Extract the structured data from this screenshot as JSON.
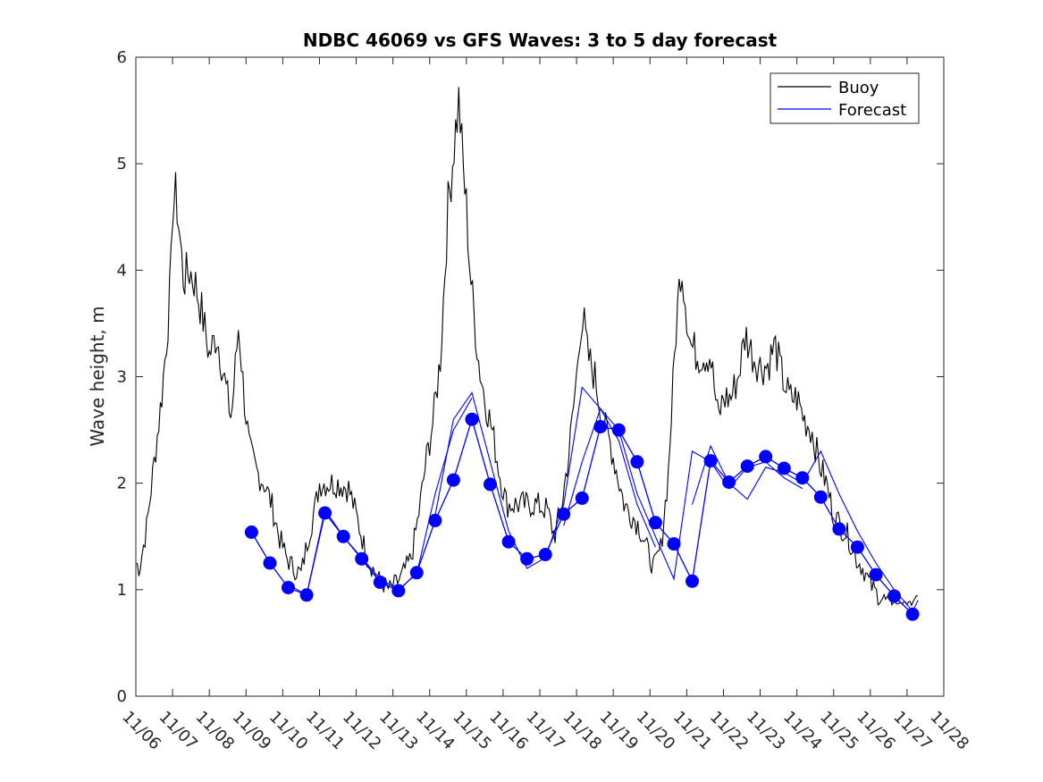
{
  "chart_data": {
    "type": "line",
    "title": "NDBC 46069 vs GFS Waves: 3 to 5 day forecast",
    "xlabel": "",
    "ylabel": "Wave height, m",
    "xlim": [
      0,
      22
    ],
    "ylim": [
      0,
      6
    ],
    "yticks": [
      "0",
      "1",
      "2",
      "3",
      "4",
      "5",
      "6"
    ],
    "xticks": [
      "11/06",
      "11/07",
      "11/08",
      "11/09",
      "11/10",
      "11/11",
      "11/12",
      "11/13",
      "11/14",
      "11/15",
      "11/16",
      "11/17",
      "11/18",
      "11/19",
      "11/20",
      "11/21",
      "11/22",
      "11/23",
      "11/24",
      "11/25",
      "11/26",
      "11/27",
      "11/28"
    ],
    "legend": {
      "position": "top-right",
      "entries": [
        {
          "label": "Buoy",
          "color": "#000000"
        },
        {
          "label": "Forecast",
          "color": "#0000ff"
        }
      ]
    },
    "colors": {
      "buoy": "#000000",
      "forecast": "#0000ff"
    },
    "buoy_anchors": {
      "x": [
        0,
        0.1,
        0.3,
        0.5,
        0.7,
        0.85,
        0.95,
        1.0,
        1.1,
        1.2,
        1.3,
        1.45,
        1.6,
        1.8,
        2.0,
        2.2,
        2.4,
        2.6,
        2.8,
        2.95,
        3.1,
        3.3,
        3.5,
        3.7,
        3.9,
        4.1,
        4.3,
        4.5,
        4.7,
        4.9,
        5.0,
        5.15,
        5.3,
        5.5,
        5.8,
        6.0,
        6.3,
        6.6,
        6.9,
        7.2,
        7.5,
        7.7,
        7.9,
        8.1,
        8.3,
        8.5,
        8.7,
        8.8,
        8.9,
        9.0,
        9.1,
        9.2,
        9.35,
        9.5,
        9.7,
        9.9,
        10.1,
        10.3,
        10.6,
        10.9,
        11.2,
        11.4,
        11.6,
        11.8,
        12.0,
        12.1,
        12.2,
        12.3,
        12.5,
        12.7,
        12.9,
        13.1,
        13.3,
        13.5,
        13.7,
        13.9,
        14.1,
        14.3,
        14.5,
        14.7,
        14.85,
        15.0,
        15.1,
        15.3,
        15.5,
        15.65,
        15.75,
        15.85,
        16.0,
        16.2,
        16.4,
        16.6,
        16.8,
        17.0,
        17.2,
        17.4,
        17.6,
        17.8,
        18.0,
        18.2,
        18.4,
        18.6,
        18.8,
        19.0,
        19.2,
        19.4,
        19.6,
        19.8,
        20.0,
        20.2,
        20.4,
        20.6,
        20.8,
        21.0,
        21.15,
        21.3
      ],
      "y": [
        1.25,
        1.2,
        1.6,
        2.2,
        2.8,
        3.4,
        3.9,
        4.6,
        4.7,
        4.3,
        3.9,
        4.0,
        3.9,
        3.6,
        3.2,
        3.4,
        3.0,
        2.6,
        3.5,
        2.8,
        2.3,
        2.1,
        2.0,
        1.8,
        1.5,
        1.3,
        1.2,
        1.15,
        1.5,
        1.8,
        2.0,
        2.0,
        2.0,
        2.0,
        1.95,
        1.7,
        1.3,
        1.1,
        1.0,
        1.1,
        1.3,
        1.7,
        2.2,
        2.6,
        3.2,
        4.6,
        5.3,
        5.6,
        5.0,
        4.6,
        4.0,
        3.6,
        3.1,
        2.8,
        2.5,
        2.1,
        1.8,
        1.8,
        1.8,
        1.8,
        1.75,
        1.5,
        1.8,
        2.3,
        3.0,
        3.5,
        3.5,
        3.2,
        3.0,
        2.6,
        2.4,
        2.1,
        1.8,
        1.7,
        1.6,
        1.4,
        1.2,
        1.4,
        2.1,
        3.4,
        4.1,
        3.6,
        3.3,
        3.2,
        3.2,
        3.2,
        2.9,
        2.6,
        2.8,
        2.8,
        3.0,
        3.4,
        3.2,
        3.1,
        3.1,
        3.3,
        3.0,
        2.8,
        2.8,
        2.6,
        2.5,
        2.2,
        2.0,
        1.7,
        1.6,
        1.5,
        1.3,
        1.2,
        1.05,
        0.95,
        0.9,
        0.85,
        0.8,
        0.8,
        0.85,
        0.9
      ]
    },
    "forecast_markers": {
      "x": [
        3.15,
        3.65,
        4.15,
        4.65,
        5.15,
        5.65,
        6.15,
        6.65,
        7.15,
        7.65,
        8.15,
        8.65,
        9.15,
        9.65,
        10.15,
        10.65,
        11.15,
        11.65,
        12.15,
        12.65,
        13.15,
        13.65,
        14.15,
        14.65,
        15.15,
        15.65,
        16.15,
        16.65,
        17.15,
        17.65,
        18.15,
        18.65,
        19.15,
        19.65,
        20.15,
        20.65,
        21.15
      ],
      "y": [
        1.54,
        1.25,
        1.02,
        0.95,
        1.72,
        1.5,
        1.29,
        1.07,
        0.99,
        1.16,
        1.65,
        2.03,
        2.6,
        1.99,
        1.45,
        1.29,
        1.33,
        1.71,
        1.86,
        2.53,
        2.5,
        2.2,
        1.63,
        1.43,
        1.08,
        2.21,
        2.01,
        2.16,
        2.25,
        2.14,
        2.05,
        1.87,
        1.57,
        1.4,
        1.14,
        0.94,
        0.77
      ]
    },
    "forecast_runs": [
      {
        "x": [
          4.15,
          4.65,
          5.15,
          5.65,
          6.15,
          6.65,
          7.15,
          7.65,
          8.15,
          8.65,
          9.15
        ],
        "y": [
          1.05,
          0.95,
          1.75,
          1.5,
          1.3,
          1.1,
          1.0,
          1.15,
          1.9,
          2.5,
          2.8
        ]
      },
      {
        "x": [
          8.15,
          8.65,
          9.15,
          9.65,
          10.15,
          10.65,
          11.15,
          11.65,
          12.15,
          12.65,
          13.15,
          13.65,
          14.15
        ],
        "y": [
          1.7,
          2.6,
          2.85,
          2.2,
          1.55,
          1.2,
          1.3,
          1.8,
          2.9,
          2.7,
          2.4,
          1.8,
          1.4
        ]
      },
      {
        "x": [
          11.65,
          12.15,
          12.65,
          13.15,
          13.65,
          14.15,
          14.65,
          15.15,
          15.65,
          16.15,
          16.65,
          17.15,
          17.65,
          18.15
        ],
        "y": [
          1.6,
          2.2,
          2.7,
          2.5,
          1.9,
          1.5,
          1.1,
          2.3,
          2.2,
          1.95,
          2.15,
          2.2,
          2.05,
          1.95
        ]
      },
      {
        "x": [
          15.15,
          15.65,
          16.15,
          16.65,
          17.15,
          17.65,
          18.15,
          18.65,
          19.15,
          19.65,
          20.15,
          20.65,
          21.15,
          21.3
        ],
        "y": [
          1.8,
          2.35,
          2.0,
          1.85,
          2.15,
          2.1,
          2.0,
          2.3,
          1.9,
          1.55,
          1.25,
          1.0,
          0.8,
          0.9
        ]
      }
    ]
  }
}
